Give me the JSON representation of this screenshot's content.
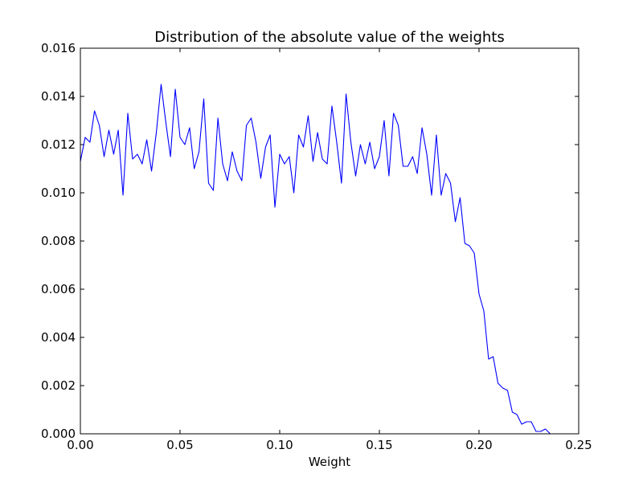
{
  "chart_data": {
    "type": "line",
    "title": "Distribution of the absolute value of the weights",
    "xlabel": "Weight",
    "ylabel": "",
    "xlim": [
      0.0,
      0.25
    ],
    "ylim": [
      0.0,
      0.016
    ],
    "grid": false,
    "legend": "none",
    "x_ticks": [
      "0.00",
      "0.05",
      "0.10",
      "0.15",
      "0.20",
      "0.25"
    ],
    "y_ticks": [
      "0.000",
      "0.002",
      "0.004",
      "0.006",
      "0.008",
      "0.010",
      "0.012",
      "0.014",
      "0.016"
    ],
    "line_color": "#0000ff",
    "series": [
      {
        "x": [
          0.0,
          0.0024,
          0.0048,
          0.0071,
          0.0095,
          0.0119,
          0.0143,
          0.0167,
          0.019,
          0.0214,
          0.0238,
          0.0262,
          0.0286,
          0.031,
          0.0333,
          0.0357,
          0.0381,
          0.0405,
          0.0429,
          0.0452,
          0.0476,
          0.05,
          0.0524,
          0.0548,
          0.0571,
          0.0595,
          0.0619,
          0.0643,
          0.0667,
          0.069,
          0.0714,
          0.0738,
          0.0762,
          0.0786,
          0.081,
          0.0833,
          0.0857,
          0.0881,
          0.0905,
          0.0929,
          0.0952,
          0.0976,
          0.1,
          0.1024,
          0.1048,
          0.1071,
          0.1095,
          0.1119,
          0.1143,
          0.1167,
          0.119,
          0.1214,
          0.1238,
          0.1262,
          0.1286,
          0.131,
          0.1333,
          0.1357,
          0.1381,
          0.1405,
          0.1429,
          0.1452,
          0.1476,
          0.15,
          0.1524,
          0.1548,
          0.1571,
          0.1595,
          0.1619,
          0.1643,
          0.1667,
          0.169,
          0.1714,
          0.1738,
          0.1762,
          0.1786,
          0.181,
          0.1833,
          0.1857,
          0.1881,
          0.1905,
          0.1929,
          0.1952,
          0.1976,
          0.2,
          0.2024,
          0.2048,
          0.2071,
          0.2095,
          0.2119,
          0.2143,
          0.2167,
          0.219,
          0.2214,
          0.2238,
          0.2262,
          0.2286,
          0.231,
          0.2333,
          0.2357
        ],
        "values": [
          0.0113,
          0.0123,
          0.0121,
          0.0134,
          0.0128,
          0.0115,
          0.0126,
          0.0116,
          0.0126,
          0.0099,
          0.0133,
          0.0114,
          0.0116,
          0.0112,
          0.0122,
          0.0109,
          0.0125,
          0.0145,
          0.0129,
          0.0115,
          0.0143,
          0.0123,
          0.012,
          0.0127,
          0.011,
          0.0117,
          0.0139,
          0.0104,
          0.0101,
          0.0131,
          0.0112,
          0.0105,
          0.0117,
          0.0109,
          0.0105,
          0.0128,
          0.0131,
          0.0121,
          0.0106,
          0.0119,
          0.0124,
          0.0094,
          0.0116,
          0.0112,
          0.0115,
          0.01,
          0.0124,
          0.0119,
          0.0132,
          0.0113,
          0.0125,
          0.0114,
          0.0112,
          0.0136,
          0.0121,
          0.0104,
          0.0141,
          0.0121,
          0.0107,
          0.012,
          0.0112,
          0.0121,
          0.011,
          0.0115,
          0.013,
          0.0107,
          0.0133,
          0.0128,
          0.0111,
          0.0111,
          0.0115,
          0.0108,
          0.0127,
          0.0116,
          0.0099,
          0.0124,
          0.0099,
          0.0108,
          0.0104,
          0.0088,
          0.0098,
          0.0079,
          0.0078,
          0.0075,
          0.0058,
          0.0051,
          0.0031,
          0.0032,
          0.0021,
          0.0019,
          0.0018,
          0.0009,
          0.0008,
          0.0004,
          0.0005,
          0.0005,
          0.0001,
          0.0001,
          0.0002,
          0.0
        ]
      }
    ]
  }
}
